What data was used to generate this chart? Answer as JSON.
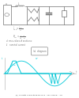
{
  "waveform_color": "#00c8d8",
  "bg_color": "#ffffff",
  "circuit_color": "#707070",
  "text_color": "#555555",
  "caption_text": "(b)  currents and voltages for θcur = 3% and θcur = 1%"
}
